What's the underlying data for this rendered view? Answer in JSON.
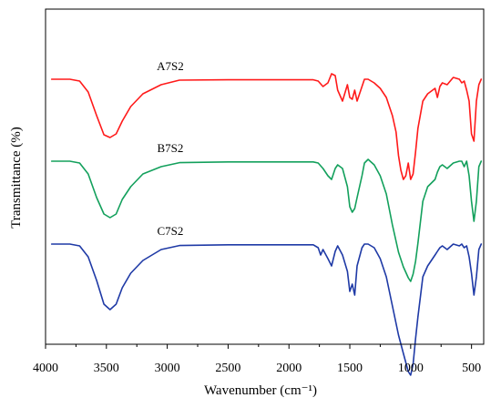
{
  "chart_data": {
    "type": "line",
    "title": "",
    "xlabel": "Wavenumber (cm⁻¹)",
    "ylabel": "Transmittance (%)",
    "xlim": [
      4000,
      400
    ],
    "x_reversed": true,
    "x_ticks": [
      "4000",
      "3500",
      "3000",
      "2500",
      "2000",
      "1500",
      "1000",
      "500"
    ],
    "y_ticks_shown": false,
    "grid": false,
    "legend": "none",
    "series": [
      {
        "name": "A7S2",
        "color": "#ff1a1a",
        "x": [
          3950,
          3800,
          3720,
          3650,
          3580,
          3520,
          3470,
          3420,
          3370,
          3300,
          3200,
          3050,
          2900,
          2500,
          2000,
          1800,
          1760,
          1720,
          1680,
          1650,
          1620,
          1600,
          1560,
          1520,
          1500,
          1480,
          1460,
          1440,
          1400,
          1380,
          1350,
          1300,
          1250,
          1200,
          1150,
          1120,
          1100,
          1080,
          1060,
          1040,
          1020,
          1000,
          980,
          960,
          940,
          900,
          860,
          800,
          780,
          760,
          740,
          700,
          650,
          600,
          580,
          560,
          540,
          520,
          500,
          480,
          460,
          440,
          420
        ],
        "y": [
          0.0,
          0.0,
          -1.0,
          -7.0,
          -20.0,
          -30.5,
          -32.0,
          -30.0,
          -23.0,
          -15.0,
          -8.0,
          -3.0,
          -0.5,
          -0.3,
          -0.3,
          -0.3,
          -1.0,
          -4.0,
          -2.0,
          3.0,
          2.0,
          -6.0,
          -12.0,
          -3.0,
          -10.0,
          -11.0,
          -6.0,
          -12.0,
          -4.0,
          0.0,
          0.0,
          -2.0,
          -5.0,
          -10.0,
          -20.0,
          -29.0,
          -42.0,
          -50.0,
          -55.0,
          -53.0,
          -46.0,
          -55.0,
          -52.0,
          -40.0,
          -27.0,
          -12.0,
          -8.0,
          -5.0,
          -10.0,
          -4.0,
          -2.0,
          -3.0,
          1.0,
          0.0,
          -2.0,
          -1.0,
          -6.0,
          -12.0,
          -30.0,
          -34.0,
          -12.0,
          -3.0,
          0.0
        ]
      },
      {
        "name": "B7S2",
        "color": "#13a05c",
        "x": [
          3950,
          3800,
          3720,
          3650,
          3580,
          3520,
          3470,
          3420,
          3370,
          3300,
          3200,
          3050,
          2900,
          2500,
          2000,
          1800,
          1760,
          1720,
          1680,
          1650,
          1620,
          1600,
          1560,
          1520,
          1500,
          1480,
          1460,
          1440,
          1400,
          1380,
          1350,
          1300,
          1250,
          1200,
          1150,
          1100,
          1060,
          1020,
          1000,
          980,
          960,
          940,
          900,
          860,
          800,
          780,
          760,
          740,
          700,
          650,
          600,
          580,
          560,
          540,
          520,
          500,
          480,
          460,
          440,
          420
        ],
        "y": [
          0.0,
          0.0,
          -1.0,
          -7.0,
          -20.0,
          -29.0,
          -31.0,
          -29.0,
          -21.0,
          -14.0,
          -7.0,
          -3.0,
          -0.8,
          -0.4,
          -0.4,
          -0.4,
          -1.0,
          -4.0,
          -8.0,
          -10.0,
          -4.0,
          -2.0,
          -4.0,
          -14.0,
          -25.0,
          -28.0,
          -26.0,
          -20.0,
          -8.0,
          -1.0,
          1.0,
          -2.0,
          -8.0,
          -18.0,
          -35.0,
          -50.0,
          -58.0,
          -64.0,
          -66.0,
          -62.0,
          -55.0,
          -45.0,
          -22.0,
          -14.0,
          -10.0,
          -6.0,
          -3.0,
          -2.0,
          -4.0,
          -1.0,
          0.0,
          0.0,
          -3.0,
          0.0,
          -8.0,
          -22.0,
          -33.0,
          -22.0,
          -3.0,
          0.0
        ]
      },
      {
        "name": "C7S2",
        "color": "#1f3aa6",
        "x": [
          3950,
          3800,
          3720,
          3650,
          3580,
          3520,
          3470,
          3420,
          3370,
          3300,
          3200,
          3050,
          2900,
          2500,
          2000,
          1800,
          1760,
          1740,
          1720,
          1680,
          1650,
          1620,
          1600,
          1560,
          1520,
          1500,
          1480,
          1460,
          1440,
          1400,
          1380,
          1350,
          1300,
          1250,
          1200,
          1150,
          1100,
          1060,
          1020,
          1000,
          980,
          960,
          940,
          900,
          860,
          800,
          780,
          760,
          740,
          700,
          650,
          600,
          580,
          560,
          540,
          520,
          500,
          480,
          460,
          440,
          420
        ],
        "y": [
          0.0,
          0.0,
          -1.0,
          -7.0,
          -20.0,
          -33.0,
          -36.0,
          -33.0,
          -24.0,
          -16.0,
          -9.0,
          -3.0,
          -0.8,
          -0.4,
          -0.4,
          -0.4,
          -2.0,
          -6.0,
          -3.0,
          -8.0,
          -12.0,
          -4.0,
          -1.0,
          -6.0,
          -15.0,
          -26.0,
          -22.0,
          -28.0,
          -12.0,
          -2.0,
          0.0,
          0.0,
          -2.0,
          -8.0,
          -18.0,
          -34.0,
          -50.0,
          -60.0,
          -70.0,
          -72.0,
          -66.0,
          -52.0,
          -40.0,
          -18.0,
          -12.0,
          -6.0,
          -4.0,
          -2.0,
          -1.0,
          -3.0,
          0.0,
          -1.0,
          0.0,
          -2.0,
          -1.0,
          -7.0,
          -16.0,
          -28.0,
          -18.0,
          -3.0,
          0.0
        ]
      }
    ]
  }
}
